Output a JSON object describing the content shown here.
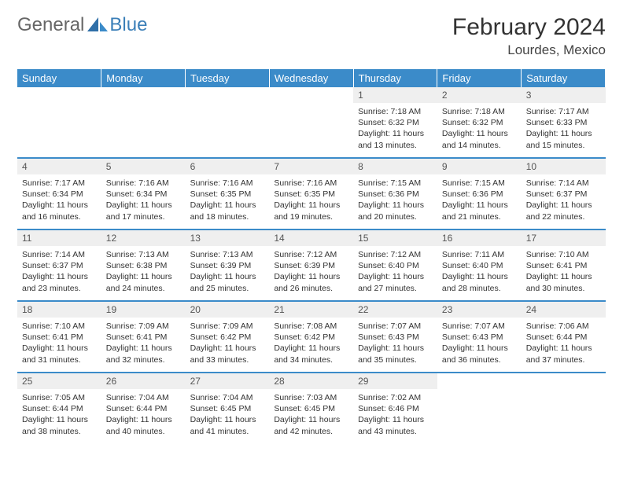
{
  "brand": {
    "part1": "General",
    "part2": "Blue"
  },
  "title": "February 2024",
  "location": "Lourdes, Mexico",
  "header_bg": "#3b8bc9",
  "header_fg": "#ffffff",
  "daynum_bg": "#efefef",
  "divider_color": "#3b8bc9",
  "dayNames": [
    "Sunday",
    "Monday",
    "Tuesday",
    "Wednesday",
    "Thursday",
    "Friday",
    "Saturday"
  ],
  "weeks": [
    [
      null,
      null,
      null,
      null,
      {
        "n": "1",
        "sr": "Sunrise: 7:18 AM",
        "ss": "Sunset: 6:32 PM",
        "d1": "Daylight: 11 hours",
        "d2": "and 13 minutes."
      },
      {
        "n": "2",
        "sr": "Sunrise: 7:18 AM",
        "ss": "Sunset: 6:32 PM",
        "d1": "Daylight: 11 hours",
        "d2": "and 14 minutes."
      },
      {
        "n": "3",
        "sr": "Sunrise: 7:17 AM",
        "ss": "Sunset: 6:33 PM",
        "d1": "Daylight: 11 hours",
        "d2": "and 15 minutes."
      }
    ],
    [
      {
        "n": "4",
        "sr": "Sunrise: 7:17 AM",
        "ss": "Sunset: 6:34 PM",
        "d1": "Daylight: 11 hours",
        "d2": "and 16 minutes."
      },
      {
        "n": "5",
        "sr": "Sunrise: 7:16 AM",
        "ss": "Sunset: 6:34 PM",
        "d1": "Daylight: 11 hours",
        "d2": "and 17 minutes."
      },
      {
        "n": "6",
        "sr": "Sunrise: 7:16 AM",
        "ss": "Sunset: 6:35 PM",
        "d1": "Daylight: 11 hours",
        "d2": "and 18 minutes."
      },
      {
        "n": "7",
        "sr": "Sunrise: 7:16 AM",
        "ss": "Sunset: 6:35 PM",
        "d1": "Daylight: 11 hours",
        "d2": "and 19 minutes."
      },
      {
        "n": "8",
        "sr": "Sunrise: 7:15 AM",
        "ss": "Sunset: 6:36 PM",
        "d1": "Daylight: 11 hours",
        "d2": "and 20 minutes."
      },
      {
        "n": "9",
        "sr": "Sunrise: 7:15 AM",
        "ss": "Sunset: 6:36 PM",
        "d1": "Daylight: 11 hours",
        "d2": "and 21 minutes."
      },
      {
        "n": "10",
        "sr": "Sunrise: 7:14 AM",
        "ss": "Sunset: 6:37 PM",
        "d1": "Daylight: 11 hours",
        "d2": "and 22 minutes."
      }
    ],
    [
      {
        "n": "11",
        "sr": "Sunrise: 7:14 AM",
        "ss": "Sunset: 6:37 PM",
        "d1": "Daylight: 11 hours",
        "d2": "and 23 minutes."
      },
      {
        "n": "12",
        "sr": "Sunrise: 7:13 AM",
        "ss": "Sunset: 6:38 PM",
        "d1": "Daylight: 11 hours",
        "d2": "and 24 minutes."
      },
      {
        "n": "13",
        "sr": "Sunrise: 7:13 AM",
        "ss": "Sunset: 6:39 PM",
        "d1": "Daylight: 11 hours",
        "d2": "and 25 minutes."
      },
      {
        "n": "14",
        "sr": "Sunrise: 7:12 AM",
        "ss": "Sunset: 6:39 PM",
        "d1": "Daylight: 11 hours",
        "d2": "and 26 minutes."
      },
      {
        "n": "15",
        "sr": "Sunrise: 7:12 AM",
        "ss": "Sunset: 6:40 PM",
        "d1": "Daylight: 11 hours",
        "d2": "and 27 minutes."
      },
      {
        "n": "16",
        "sr": "Sunrise: 7:11 AM",
        "ss": "Sunset: 6:40 PM",
        "d1": "Daylight: 11 hours",
        "d2": "and 28 minutes."
      },
      {
        "n": "17",
        "sr": "Sunrise: 7:10 AM",
        "ss": "Sunset: 6:41 PM",
        "d1": "Daylight: 11 hours",
        "d2": "and 30 minutes."
      }
    ],
    [
      {
        "n": "18",
        "sr": "Sunrise: 7:10 AM",
        "ss": "Sunset: 6:41 PM",
        "d1": "Daylight: 11 hours",
        "d2": "and 31 minutes."
      },
      {
        "n": "19",
        "sr": "Sunrise: 7:09 AM",
        "ss": "Sunset: 6:41 PM",
        "d1": "Daylight: 11 hours",
        "d2": "and 32 minutes."
      },
      {
        "n": "20",
        "sr": "Sunrise: 7:09 AM",
        "ss": "Sunset: 6:42 PM",
        "d1": "Daylight: 11 hours",
        "d2": "and 33 minutes."
      },
      {
        "n": "21",
        "sr": "Sunrise: 7:08 AM",
        "ss": "Sunset: 6:42 PM",
        "d1": "Daylight: 11 hours",
        "d2": "and 34 minutes."
      },
      {
        "n": "22",
        "sr": "Sunrise: 7:07 AM",
        "ss": "Sunset: 6:43 PM",
        "d1": "Daylight: 11 hours",
        "d2": "and 35 minutes."
      },
      {
        "n": "23",
        "sr": "Sunrise: 7:07 AM",
        "ss": "Sunset: 6:43 PM",
        "d1": "Daylight: 11 hours",
        "d2": "and 36 minutes."
      },
      {
        "n": "24",
        "sr": "Sunrise: 7:06 AM",
        "ss": "Sunset: 6:44 PM",
        "d1": "Daylight: 11 hours",
        "d2": "and 37 minutes."
      }
    ],
    [
      {
        "n": "25",
        "sr": "Sunrise: 7:05 AM",
        "ss": "Sunset: 6:44 PM",
        "d1": "Daylight: 11 hours",
        "d2": "and 38 minutes."
      },
      {
        "n": "26",
        "sr": "Sunrise: 7:04 AM",
        "ss": "Sunset: 6:44 PM",
        "d1": "Daylight: 11 hours",
        "d2": "and 40 minutes."
      },
      {
        "n": "27",
        "sr": "Sunrise: 7:04 AM",
        "ss": "Sunset: 6:45 PM",
        "d1": "Daylight: 11 hours",
        "d2": "and 41 minutes."
      },
      {
        "n": "28",
        "sr": "Sunrise: 7:03 AM",
        "ss": "Sunset: 6:45 PM",
        "d1": "Daylight: 11 hours",
        "d2": "and 42 minutes."
      },
      {
        "n": "29",
        "sr": "Sunrise: 7:02 AM",
        "ss": "Sunset: 6:46 PM",
        "d1": "Daylight: 11 hours",
        "d2": "and 43 minutes."
      },
      null,
      null
    ]
  ]
}
